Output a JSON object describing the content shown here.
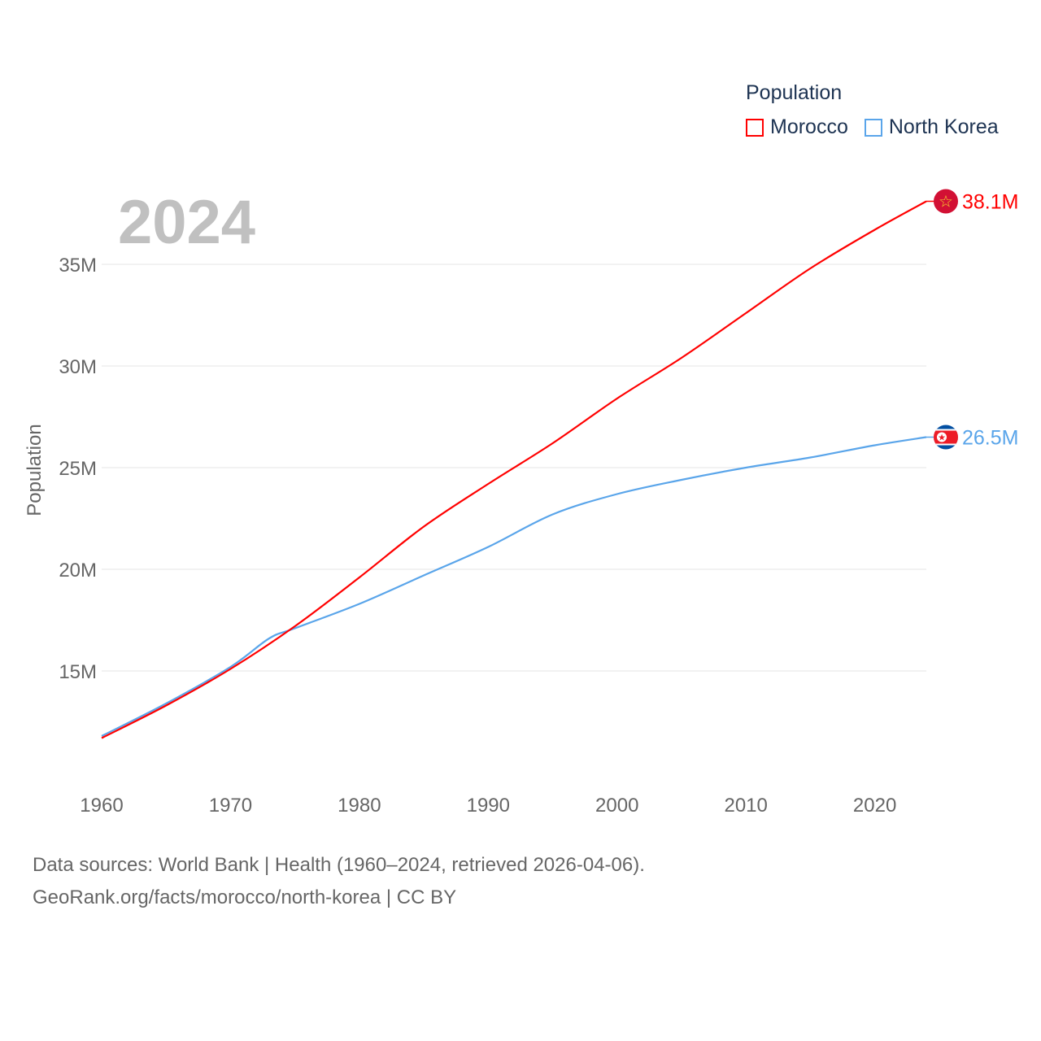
{
  "chart_data": {
    "type": "line",
    "title": "Population",
    "current_year": "2024",
    "ylabel": "Population",
    "xlabel": "",
    "xlim": [
      1960,
      2024
    ],
    "ylim": [
      10000000,
      38500000
    ],
    "x_ticks": [
      1960,
      1970,
      1980,
      1990,
      2000,
      2010,
      2020
    ],
    "y_ticks": [
      15000000,
      20000000,
      25000000,
      30000000,
      35000000
    ],
    "y_tick_labels": [
      "15M",
      "20M",
      "25M",
      "30M",
      "35M"
    ],
    "grid": true,
    "legend_position": "top-right",
    "series": [
      {
        "name": "Morocco",
        "color": "#ff0000",
        "end_label": "38.1M",
        "flag": "morocco-flag",
        "x": [
          1960,
          1965,
          1970,
          1975,
          1980,
          1985,
          1990,
          1995,
          2000,
          2005,
          2010,
          2015,
          2020,
          2024
        ],
        "values": [
          11700000,
          13300000,
          15100000,
          17200000,
          19600000,
          22100000,
          24200000,
          26200000,
          28400000,
          30400000,
          32600000,
          34800000,
          36700000,
          38100000
        ]
      },
      {
        "name": "North Korea",
        "color": "#5aa5ea",
        "end_label": "26.5M",
        "flag": "north-korea-flag",
        "x": [
          1960,
          1965,
          1970,
          1973,
          1975,
          1980,
          1985,
          1990,
          1995,
          2000,
          2005,
          2010,
          2015,
          2020,
          2024
        ],
        "values": [
          11800000,
          13400000,
          15200000,
          16600000,
          17100000,
          18300000,
          19700000,
          21100000,
          22700000,
          23700000,
          24400000,
          25000000,
          25500000,
          26100000,
          26500000
        ]
      }
    ]
  },
  "footer": {
    "line1": "Data sources: World Bank | Health (1960–2024, retrieved 2026-04-06).",
    "line2": "GeoRank.org/facts/morocco/north-korea | CC BY"
  }
}
